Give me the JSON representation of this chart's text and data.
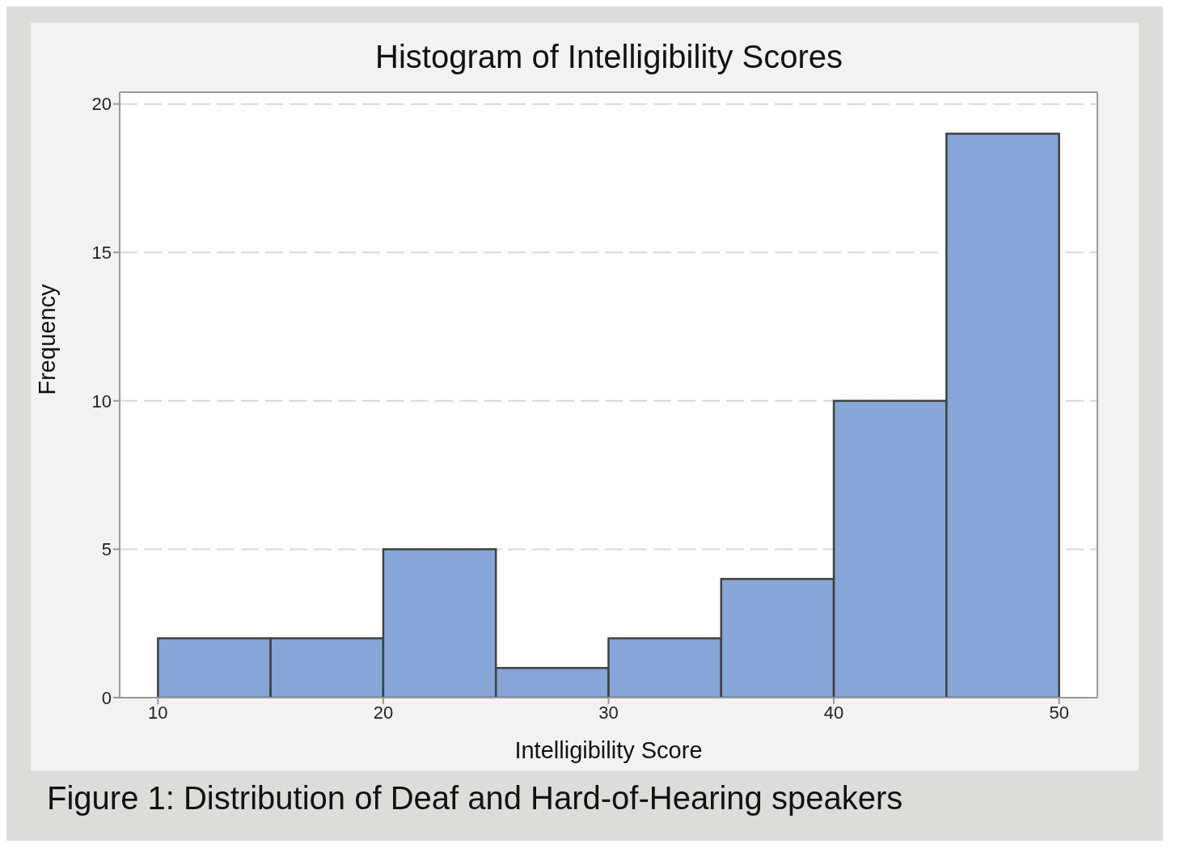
{
  "chart_data": {
    "type": "histogram",
    "title": "Histogram of Intelligibility Scores",
    "xlabel": "Intelligibility Score",
    "ylabel": "Frequency",
    "bins": [
      10,
      15,
      20,
      25,
      30,
      35,
      40,
      45,
      50
    ],
    "values": [
      2,
      2,
      5,
      1,
      2,
      4,
      10,
      19
    ],
    "color": "#85a6d6",
    "xlim": [
      8.3,
      51.7
    ],
    "xticks": [
      10,
      20,
      30,
      40,
      50
    ],
    "ylim": [
      0,
      20.4
    ],
    "yticks": [
      0,
      5,
      10,
      15,
      20
    ],
    "grid": "y",
    "annotations": [
      "Figure 1: Distribution of Deaf and Hard-of-Hearing speakers"
    ]
  }
}
